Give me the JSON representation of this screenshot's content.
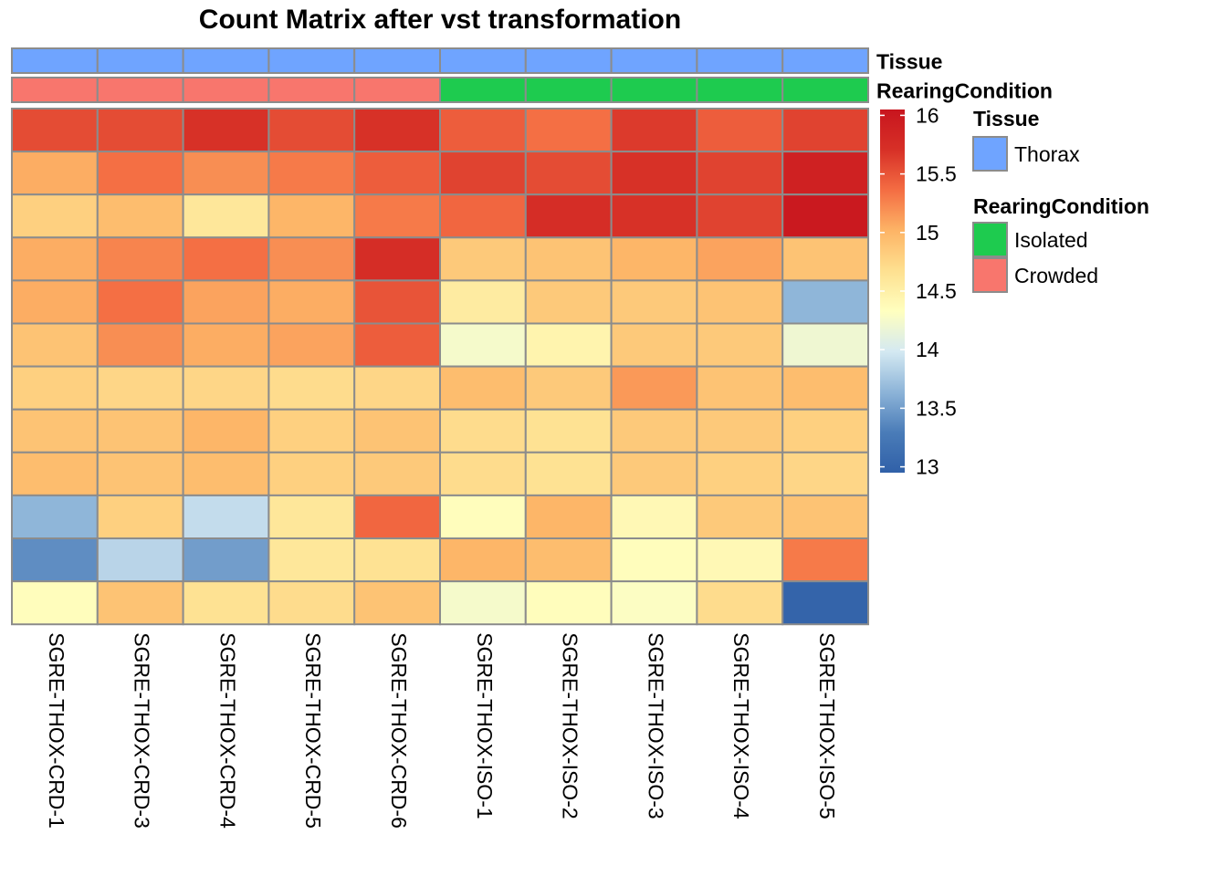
{
  "chart_data": {
    "type": "heatmap",
    "title": "Count Matrix after vst transformation",
    "columns": [
      "SGRE-THOX-CRD-1",
      "SGRE-THOX-CRD-3",
      "SGRE-THOX-CRD-4",
      "SGRE-THOX-CRD-5",
      "SGRE-THOX-CRD-6",
      "SGRE-THOX-ISO-1",
      "SGRE-THOX-ISO-2",
      "SGRE-THOX-ISO-3",
      "SGRE-THOX-ISO-4",
      "SGRE-THOX-ISO-5"
    ],
    "annotations": [
      {
        "name": "Tissue",
        "values": [
          "Thorax",
          "Thorax",
          "Thorax",
          "Thorax",
          "Thorax",
          "Thorax",
          "Thorax",
          "Thorax",
          "Thorax",
          "Thorax"
        ]
      },
      {
        "name": "RearingCondition",
        "values": [
          "Crowded",
          "Crowded",
          "Crowded",
          "Crowded",
          "Crowded",
          "Isolated",
          "Isolated",
          "Isolated",
          "Isolated",
          "Isolated"
        ]
      }
    ],
    "annotation_colors": {
      "Tissue": {
        "Thorax": "#6FA4FF"
      },
      "RearingCondition": {
        "Isolated": "#1ECB4F",
        "Crowded": "#F8766D"
      }
    },
    "values": [
      [
        15.55,
        15.55,
        15.7,
        15.55,
        15.7,
        15.45,
        15.35,
        15.65,
        15.45,
        15.6
      ],
      [
        15.05,
        15.35,
        15.2,
        15.3,
        15.45,
        15.6,
        15.55,
        15.7,
        15.6,
        15.9
      ],
      [
        14.8,
        14.95,
        14.6,
        15.0,
        15.3,
        15.4,
        15.75,
        15.7,
        15.6,
        16.0
      ],
      [
        15.05,
        15.25,
        15.35,
        15.2,
        15.75,
        14.85,
        14.9,
        15.0,
        15.1,
        14.9
      ],
      [
        15.05,
        15.35,
        15.1,
        15.05,
        15.5,
        14.55,
        14.85,
        14.85,
        14.9,
        13.65
      ],
      [
        14.9,
        15.2,
        15.05,
        15.1,
        15.45,
        14.25,
        14.45,
        14.85,
        14.85,
        14.2
      ],
      [
        14.8,
        14.75,
        14.75,
        14.7,
        14.75,
        14.95,
        14.85,
        15.15,
        14.9,
        14.95
      ],
      [
        14.9,
        14.9,
        15.0,
        14.8,
        14.9,
        14.7,
        14.65,
        14.85,
        14.85,
        14.8
      ],
      [
        14.95,
        14.9,
        14.95,
        14.8,
        14.85,
        14.7,
        14.65,
        14.85,
        14.8,
        14.75
      ],
      [
        13.65,
        14.8,
        13.9,
        14.6,
        15.4,
        14.35,
        15.0,
        14.4,
        14.85,
        14.9
      ],
      [
        13.4,
        13.85,
        13.5,
        14.6,
        14.65,
        15.0,
        14.95,
        14.35,
        14.4,
        15.3
      ],
      [
        14.35,
        14.9,
        14.65,
        14.7,
        14.9,
        14.25,
        14.35,
        14.3,
        14.7,
        13.0
      ]
    ],
    "scale": {
      "min": 12.95,
      "max": 16.05,
      "ticks": [
        16,
        15.5,
        15,
        14.5,
        14,
        13.5,
        13
      ],
      "colors": [
        "#3060A8",
        "#4A7CB8",
        "#8DB4D8",
        "#D4E9F2",
        "#FFFFBF",
        "#FEE090",
        "#FDB466",
        "#F46D43",
        "#D73027",
        "#C8151E"
      ]
    },
    "legends": [
      {
        "title": "Tissue",
        "items": [
          {
            "label": "Thorax",
            "color": "#6FA4FF"
          }
        ]
      },
      {
        "title": "RearingCondition",
        "items": [
          {
            "label": "Isolated",
            "color": "#1ECB4F"
          },
          {
            "label": "Crowded",
            "color": "#F8766D"
          }
        ]
      }
    ]
  }
}
